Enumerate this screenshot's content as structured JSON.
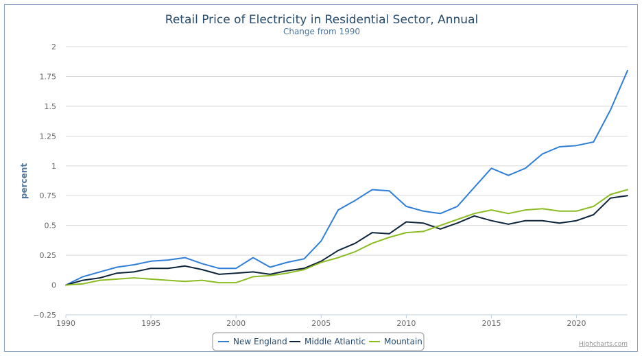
{
  "chart_data": {
    "type": "line",
    "title": "Retail Price of Electricity in Residential Sector, Annual",
    "subtitle": "Change from 1990",
    "ylabel": "percent",
    "xlabel": "",
    "ylim": [
      -0.25,
      2
    ],
    "y_ticks": [
      "2",
      "1.75",
      "1.5",
      "1.25",
      "1",
      "0.75",
      "0.5",
      "0.25",
      "0",
      "−0.25"
    ],
    "y_tick_values": [
      2,
      1.75,
      1.5,
      1.25,
      1,
      0.75,
      0.5,
      0.25,
      0,
      -0.25
    ],
    "xlim": [
      1990,
      2023
    ],
    "x_ticks": [
      "1990",
      "1995",
      "2000",
      "2005",
      "2010",
      "2015",
      "2020"
    ],
    "x_tick_values": [
      1990,
      1995,
      2000,
      2005,
      2010,
      2015,
      2020
    ],
    "grid": "horizontal",
    "legend_position": "bottom-center",
    "x": [
      1990,
      1991,
      1992,
      1993,
      1994,
      1995,
      1996,
      1997,
      1998,
      1999,
      2000,
      2001,
      2002,
      2003,
      2004,
      2005,
      2006,
      2007,
      2008,
      2009,
      2010,
      2011,
      2012,
      2013,
      2014,
      2015,
      2016,
      2017,
      2018,
      2019,
      2020,
      2021,
      2022,
      2023
    ],
    "series": [
      {
        "name": "New England",
        "color": "#2f7ed8",
        "values": [
          0,
          0.07,
          0.11,
          0.15,
          0.17,
          0.2,
          0.21,
          0.23,
          0.18,
          0.14,
          0.14,
          0.23,
          0.15,
          0.19,
          0.22,
          0.37,
          0.63,
          0.71,
          0.8,
          0.79,
          0.66,
          0.62,
          0.6,
          0.66,
          0.82,
          0.98,
          0.92,
          0.98,
          1.1,
          1.16,
          1.17,
          1.2,
          1.47,
          1.8
        ]
      },
      {
        "name": "Middle Atlantic",
        "color": "#0d233a",
        "values": [
          0,
          0.04,
          0.06,
          0.1,
          0.11,
          0.14,
          0.14,
          0.16,
          0.13,
          0.09,
          0.1,
          0.11,
          0.09,
          0.12,
          0.14,
          0.2,
          0.29,
          0.35,
          0.44,
          0.43,
          0.53,
          0.52,
          0.47,
          0.52,
          0.58,
          0.54,
          0.51,
          0.54,
          0.54,
          0.52,
          0.54,
          0.59,
          0.73,
          0.75
        ]
      },
      {
        "name": "Mountain",
        "color": "#8bbc21",
        "values": [
          0,
          0.01,
          0.04,
          0.05,
          0.06,
          0.05,
          0.04,
          0.03,
          0.04,
          0.02,
          0.02,
          0.07,
          0.08,
          0.1,
          0.13,
          0.19,
          0.23,
          0.28,
          0.35,
          0.4,
          0.44,
          0.45,
          0.5,
          0.55,
          0.6,
          0.63,
          0.6,
          0.63,
          0.64,
          0.62,
          0.62,
          0.66,
          0.76,
          0.8
        ]
      }
    ]
  },
  "credits": "Highcharts.com"
}
